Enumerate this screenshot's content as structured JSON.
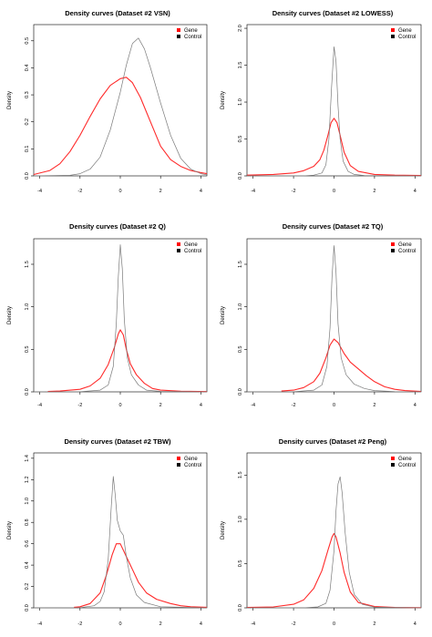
{
  "figure": {
    "line_colors": {
      "gene": "#ff2a2a",
      "control": "#7a7a7a"
    },
    "legend_swatch_colors": {
      "gene": "#ff0000",
      "control": "#000000"
    }
  },
  "chart_data": [
    {
      "type": "line",
      "title": "Density curves (Dataset #2 VSN)",
      "ylabel": "Density",
      "xlim": [
        -4.3,
        4.3
      ],
      "ylim": [
        0,
        0.56
      ],
      "xticks": [
        -4,
        -2,
        0,
        2,
        4
      ],
      "yticks": [
        0.0,
        0.1,
        0.2,
        0.3,
        0.4,
        0.5
      ],
      "legend": [
        "Gene",
        "Control"
      ],
      "legend_position": "top-right",
      "series": [
        {
          "name": "Gene",
          "x": [
            -4.3,
            -3.5,
            -3.0,
            -2.5,
            -2.0,
            -1.5,
            -1.0,
            -0.5,
            0.0,
            0.3,
            0.6,
            1.0,
            1.5,
            2.0,
            2.5,
            3.0,
            3.5,
            4.0,
            4.3
          ],
          "y": [
            0.005,
            0.02,
            0.045,
            0.09,
            0.15,
            0.22,
            0.285,
            0.335,
            0.36,
            0.365,
            0.345,
            0.29,
            0.2,
            0.11,
            0.06,
            0.035,
            0.02,
            0.012,
            0.008
          ]
        },
        {
          "name": "Control",
          "x": [
            -4.3,
            -2.5,
            -2.0,
            -1.5,
            -1.0,
            -0.5,
            0.0,
            0.3,
            0.6,
            0.9,
            1.2,
            1.5,
            2.0,
            2.5,
            3.0,
            3.5,
            4.0,
            4.3
          ],
          "y": [
            0.0,
            0.002,
            0.008,
            0.025,
            0.07,
            0.17,
            0.31,
            0.41,
            0.49,
            0.51,
            0.47,
            0.4,
            0.27,
            0.15,
            0.065,
            0.025,
            0.008,
            0.004
          ]
        }
      ]
    },
    {
      "type": "line",
      "title": "Density curves (Dataset #2 LOWESS)",
      "ylabel": "Density",
      "xlim": [
        -4.3,
        4.3
      ],
      "ylim": [
        0,
        2.05
      ],
      "xticks": [
        -4,
        -2,
        0,
        2,
        4
      ],
      "yticks": [
        0.0,
        0.5,
        1.0,
        1.5,
        2.0
      ],
      "legend": [
        "Gene",
        "Control"
      ],
      "legend_position": "top-right",
      "series": [
        {
          "name": "Gene",
          "x": [
            -4.3,
            -3.0,
            -2.0,
            -1.5,
            -1.0,
            -0.7,
            -0.5,
            -0.3,
            -0.15,
            0.0,
            0.15,
            0.3,
            0.5,
            0.8,
            1.2,
            2.0,
            3.0,
            4.3
          ],
          "y": [
            0.01,
            0.02,
            0.04,
            0.07,
            0.13,
            0.22,
            0.35,
            0.55,
            0.72,
            0.78,
            0.72,
            0.55,
            0.32,
            0.14,
            0.06,
            0.02,
            0.01,
            0.005
          ]
        },
        {
          "name": "Control",
          "x": [
            -4.3,
            -1.5,
            -1.0,
            -0.6,
            -0.4,
            -0.25,
            -0.12,
            0.0,
            0.1,
            0.2,
            0.3,
            0.45,
            0.7,
            1.0,
            1.5,
            4.3
          ],
          "y": [
            0.0,
            0.0,
            0.01,
            0.04,
            0.15,
            0.5,
            1.2,
            1.75,
            1.55,
            0.95,
            0.5,
            0.2,
            0.06,
            0.02,
            0.005,
            0.0
          ]
        }
      ]
    },
    {
      "type": "line",
      "title": "Density curves (Dataset #2 Q)",
      "ylabel": "Density",
      "xlim": [
        -4.3,
        4.3
      ],
      "ylim": [
        0,
        1.8
      ],
      "xticks": [
        -4,
        -2,
        0,
        2,
        4
      ],
      "yticks": [
        0.0,
        0.5,
        1.0,
        1.5
      ],
      "legend": [
        "Gene",
        "Control"
      ],
      "legend_position": "top-right",
      "series": [
        {
          "name": "Gene",
          "x": [
            -3.6,
            -3.0,
            -2.0,
            -1.5,
            -1.0,
            -0.6,
            -0.3,
            -0.1,
            0.0,
            0.15,
            0.3,
            0.5,
            0.8,
            1.2,
            1.6,
            2.0,
            3.0,
            4.3
          ],
          "y": [
            0.005,
            0.01,
            0.03,
            0.07,
            0.16,
            0.32,
            0.52,
            0.68,
            0.73,
            0.67,
            0.5,
            0.33,
            0.2,
            0.1,
            0.04,
            0.02,
            0.008,
            0.003
          ]
        },
        {
          "name": "Control",
          "x": [
            -4.3,
            -2.0,
            -1.0,
            -0.6,
            -0.35,
            -0.2,
            -0.1,
            0.0,
            0.1,
            0.2,
            0.35,
            0.55,
            0.9,
            1.3,
            2.0,
            4.3
          ],
          "y": [
            0.0,
            0.002,
            0.02,
            0.08,
            0.3,
            0.8,
            1.35,
            1.73,
            1.45,
            0.85,
            0.4,
            0.2,
            0.08,
            0.02,
            0.005,
            0.0
          ]
        }
      ]
    },
    {
      "type": "line",
      "title": "Density curves (Dataset #2 TQ)",
      "ylabel": "Density",
      "xlim": [
        -4.3,
        4.3
      ],
      "ylim": [
        0,
        1.8
      ],
      "xticks": [
        -4,
        -2,
        0,
        2,
        4
      ],
      "yticks": [
        0.0,
        0.5,
        1.0,
        1.5
      ],
      "legend": [
        "Gene",
        "Control"
      ],
      "legend_position": "top-right",
      "series": [
        {
          "name": "Gene",
          "x": [
            -2.6,
            -2.0,
            -1.5,
            -1.0,
            -0.7,
            -0.4,
            -0.2,
            0.0,
            0.2,
            0.5,
            0.8,
            1.2,
            1.6,
            2.0,
            2.5,
            3.0,
            3.5,
            4.3
          ],
          "y": [
            0.01,
            0.02,
            0.05,
            0.12,
            0.22,
            0.4,
            0.55,
            0.62,
            0.58,
            0.45,
            0.35,
            0.27,
            0.19,
            0.12,
            0.06,
            0.03,
            0.015,
            0.005
          ]
        },
        {
          "name": "Control",
          "x": [
            -4.3,
            -2.0,
            -1.0,
            -0.6,
            -0.35,
            -0.2,
            -0.1,
            0.0,
            0.1,
            0.2,
            0.35,
            0.6,
            1.0,
            1.5,
            2.0,
            3.0,
            4.3
          ],
          "y": [
            0.0,
            0.002,
            0.02,
            0.08,
            0.3,
            0.75,
            1.35,
            1.72,
            1.4,
            0.8,
            0.4,
            0.2,
            0.09,
            0.04,
            0.015,
            0.003,
            0.0
          ]
        }
      ]
    },
    {
      "type": "line",
      "title": "Density curves (Dataset #2 TBW)",
      "ylabel": "Density",
      "xlim": [
        -4.3,
        4.3
      ],
      "ylim": [
        0,
        1.45
      ],
      "xticks": [
        -4,
        -2,
        0,
        2,
        4
      ],
      "yticks": [
        0.0,
        0.2,
        0.4,
        0.6,
        0.8,
        1.0,
        1.2,
        1.4
      ],
      "legend": [
        "Gene",
        "Control"
      ],
      "legend_position": "top-right",
      "series": [
        {
          "name": "Gene",
          "x": [
            -2.3,
            -2.0,
            -1.5,
            -1.0,
            -0.7,
            -0.4,
            -0.2,
            0.0,
            0.2,
            0.4,
            0.6,
            0.9,
            1.3,
            1.8,
            2.5,
            3.0,
            3.5,
            4.3
          ],
          "y": [
            0.005,
            0.01,
            0.04,
            0.14,
            0.3,
            0.5,
            0.6,
            0.6,
            0.52,
            0.44,
            0.36,
            0.24,
            0.14,
            0.08,
            0.04,
            0.02,
            0.01,
            0.005
          ]
        },
        {
          "name": "Control",
          "x": [
            -4.3,
            -2.0,
            -1.3,
            -1.0,
            -0.8,
            -0.6,
            -0.45,
            -0.35,
            -0.25,
            -0.15,
            0.0,
            0.15,
            0.3,
            0.5,
            0.8,
            1.2,
            2.0,
            4.3
          ],
          "y": [
            0.0,
            0.002,
            0.02,
            0.06,
            0.15,
            0.45,
            0.95,
            1.23,
            1.05,
            0.82,
            0.72,
            0.68,
            0.48,
            0.28,
            0.12,
            0.05,
            0.01,
            0.0
          ]
        }
      ]
    },
    {
      "type": "line",
      "title": "Density curves (Dataset #2 Peng)",
      "ylabel": "Density",
      "xlim": [
        -4.3,
        4.3
      ],
      "ylim": [
        0,
        1.75
      ],
      "xticks": [
        -4,
        -2,
        0,
        2,
        4
      ],
      "yticks": [
        0.0,
        0.5,
        1.0,
        1.5
      ],
      "legend": [
        "Gene",
        "Control"
      ],
      "legend_position": "top-right",
      "series": [
        {
          "name": "Gene",
          "x": [
            -4.3,
            -3.0,
            -2.0,
            -1.5,
            -1.0,
            -0.6,
            -0.3,
            -0.1,
            0.0,
            0.1,
            0.3,
            0.5,
            0.8,
            1.2,
            2.0,
            3.0,
            4.3
          ],
          "y": [
            0.005,
            0.01,
            0.04,
            0.09,
            0.22,
            0.42,
            0.65,
            0.8,
            0.84,
            0.8,
            0.62,
            0.4,
            0.18,
            0.06,
            0.015,
            0.005,
            0.002
          ]
        },
        {
          "name": "Control",
          "x": [
            -4.3,
            -1.5,
            -0.8,
            -0.4,
            -0.2,
            0.0,
            0.1,
            0.2,
            0.3,
            0.4,
            0.55,
            0.75,
            1.0,
            1.4,
            2.0,
            4.3
          ],
          "y": [
            0.0,
            0.0,
            0.01,
            0.05,
            0.2,
            0.65,
            1.1,
            1.4,
            1.48,
            1.3,
            0.85,
            0.4,
            0.15,
            0.04,
            0.008,
            0.0
          ]
        }
      ]
    }
  ]
}
